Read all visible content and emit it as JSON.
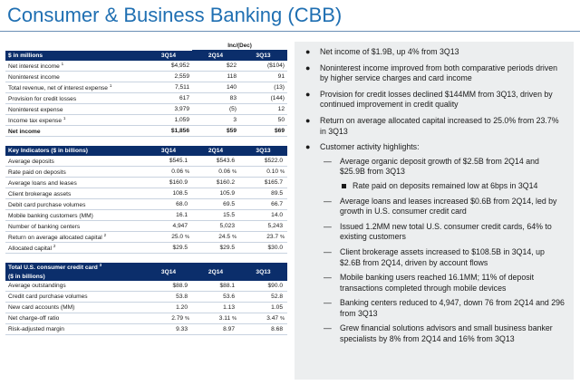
{
  "title": "Consumer & Business Banking (CBB)",
  "table1": {
    "inc_dec": "Inc/(Dec)",
    "header": [
      "$ in millions",
      "3Q14",
      "2Q14",
      "3Q13"
    ],
    "rows": [
      {
        "label": "Net interest income",
        "sup": "1",
        "v": [
          "$4,952",
          "$22",
          "($104)"
        ]
      },
      {
        "label": "Noninterest income",
        "sup": "",
        "v": [
          "2,559",
          "118",
          "91"
        ]
      },
      {
        "label": "Total revenue, net of interest expense",
        "sup": "1",
        "v": [
          "7,511",
          "140",
          "(13)"
        ]
      },
      {
        "label": "Provision for credit losses",
        "sup": "",
        "v": [
          "617",
          "83",
          "(144)"
        ]
      },
      {
        "label": "Noninterest expense",
        "sup": "",
        "v": [
          "3,979",
          "(5)",
          "12"
        ]
      },
      {
        "label": "Income tax expense",
        "sup": "1",
        "v": [
          "1,059",
          "3",
          "50"
        ]
      },
      {
        "label": "Net income",
        "sup": "",
        "v": [
          "$1,856",
          "$59",
          "$69"
        ]
      }
    ]
  },
  "table2": {
    "header": [
      "Key Indicators ($ in billions)",
      "3Q14",
      "2Q14",
      "3Q13"
    ],
    "rows": [
      {
        "label": "Average deposits",
        "sup": "",
        "v": [
          "$545.1",
          "$543.6",
          "$522.0"
        ],
        "pct": [
          "",
          "",
          ""
        ]
      },
      {
        "label": "Rate paid on deposits",
        "sup": "",
        "v": [
          "0.06",
          "0.06",
          "0.10"
        ],
        "pct": [
          "%",
          "%",
          "%"
        ]
      },
      {
        "label": "Average loans and leases",
        "sup": "",
        "v": [
          "$160.9",
          "$160.2",
          "$165.7"
        ],
        "pct": [
          "",
          "",
          ""
        ]
      },
      {
        "label": "Client brokerage assets",
        "sup": "",
        "v": [
          "108.5",
          "105.9",
          "89.5"
        ],
        "pct": [
          "",
          "",
          ""
        ]
      },
      {
        "label": "Debit card purchase volumes",
        "sup": "",
        "v": [
          "68.0",
          "69.5",
          "66.7"
        ],
        "pct": [
          "",
          "",
          ""
        ]
      },
      {
        "label": "Mobile banking customers (MM)",
        "sup": "",
        "v": [
          "16.1",
          "15.5",
          "14.0"
        ],
        "pct": [
          "",
          "",
          ""
        ]
      },
      {
        "label": "Number of banking centers",
        "sup": "",
        "v": [
          "4,947",
          "5,023",
          "5,243"
        ],
        "pct": [
          "",
          "",
          ""
        ]
      },
      {
        "label": "Return on average allocated capital",
        "sup": "2",
        "v": [
          "25.0",
          "24.5",
          "23.7"
        ],
        "pct": [
          "%",
          "%",
          "%"
        ]
      },
      {
        "label": "Allocated capital",
        "sup": "2",
        "v": [
          "$29.5",
          "$29.5",
          "$30.0"
        ],
        "pct": [
          "",
          "",
          ""
        ]
      }
    ]
  },
  "table3": {
    "header_line1": "Total U.S. consumer credit card",
    "header_sup": "3",
    "header_line2": "($ in billions)",
    "cols": [
      "3Q14",
      "2Q14",
      "3Q13"
    ],
    "rows": [
      {
        "label": "Average outstandings",
        "v": [
          "$88.9",
          "$88.1",
          "$90.0"
        ],
        "pct": [
          "",
          "",
          ""
        ]
      },
      {
        "label": "Credit card purchase volumes",
        "v": [
          "53.8",
          "53.6",
          "52.8"
        ],
        "pct": [
          "",
          "",
          ""
        ]
      },
      {
        "label": "New card accounts (MM)",
        "v": [
          "1.20",
          "1.13",
          "1.05"
        ],
        "pct": [
          "",
          "",
          ""
        ]
      },
      {
        "label": "Net charge-off ratio",
        "v": [
          "2.79",
          "3.11",
          "3.47"
        ],
        "pct": [
          "%",
          "%",
          "%"
        ]
      },
      {
        "label": "Risk-adjusted margin",
        "v": [
          "9.33",
          "8.97",
          "8.68"
        ],
        "pct": [
          "",
          "",
          ""
        ]
      }
    ]
  },
  "bullets": {
    "b1": "Net income of $1.9B, up 4% from 3Q13",
    "b2": "Noninterest income improved from both comparative periods driven by higher service charges and card income",
    "b3": "Provision for credit losses declined $144MM from 3Q13, driven by continued improvement in credit quality",
    "b4": "Return on average allocated capital increased to 25.0% from 23.7% in 3Q13",
    "b5": "Customer activity highlights:",
    "s1": "Average organic deposit growth of $2.5B from 2Q14 and $25.9B from 3Q13",
    "s1a": "Rate paid on deposits remained low at 6bps in 3Q14",
    "s2": "Average loans and leases increased $0.6B from 2Q14, led by growth in U.S. consumer credit card",
    "s3": "Issued 1.2MM new total U.S. consumer credit cards, 64% to existing customers",
    "s4": "Client brokerage assets increased to $108.5B in 3Q14, up $2.6B from 2Q14, driven by account flows",
    "s5": "Mobile banking users reached 16.1MM; 11% of deposit transactions completed through mobile devices",
    "s6": "Banking centers reduced to 4,947, down 76 from 2Q14 and 296 from 3Q13",
    "s7": "Grew financial solutions advisors and small business banker specialists by 8% from 2Q14 and 16% from 3Q13"
  }
}
